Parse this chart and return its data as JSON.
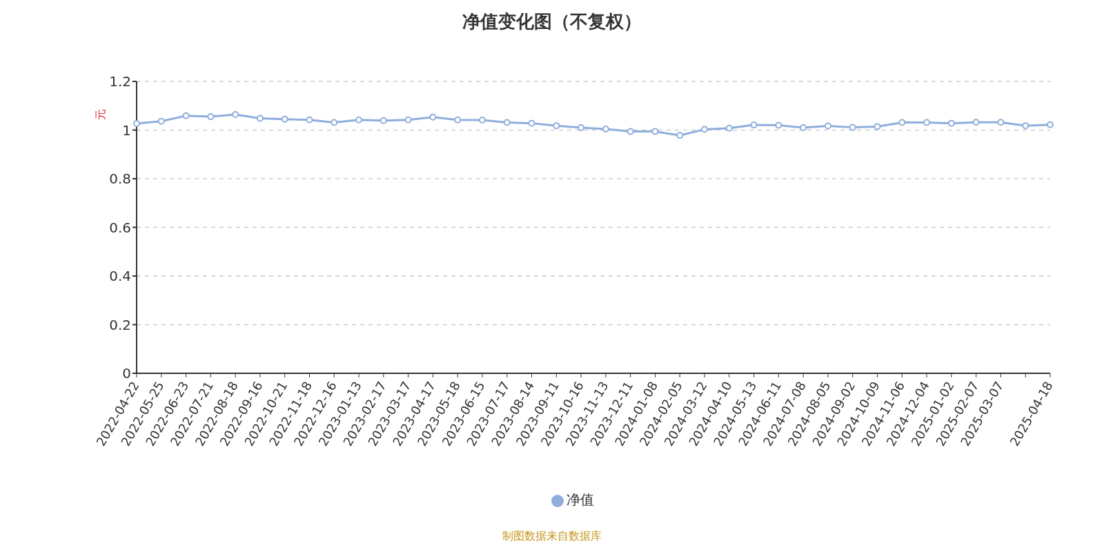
{
  "chart_data": {
    "type": "line",
    "title": "净值变化图（不复权）",
    "ylabel": "元",
    "categories": [
      "2022-04-22",
      "2022-05-25",
      "2022-06-23",
      "2022-07-21",
      "2022-08-18",
      "2022-09-16",
      "2022-10-21",
      "2022-11-18",
      "2022-12-16",
      "2023-01-13",
      "2023-02-17",
      "2023-03-17",
      "2023-04-17",
      "2023-05-18",
      "2023-06-15",
      "2023-07-17",
      "2023-08-14",
      "2023-09-11",
      "2023-10-16",
      "2023-11-13",
      "2023-12-11",
      "2024-01-08",
      "2024-02-05",
      "2024-03-12",
      "2024-04-10",
      "2024-05-13",
      "2024-06-11",
      "2024-07-08",
      "2024-08-05",
      "2024-09-02",
      "2024-10-09",
      "2024-11-06",
      "2024-12-04",
      "2025-01-02",
      "2025-02-07",
      "2025-03-07",
      null,
      "2025-04-18"
    ],
    "series": [
      {
        "name": "净值",
        "color": "#8eaedd",
        "values": [
          1.027,
          1.036,
          1.059,
          1.055,
          1.064,
          1.048,
          1.045,
          1.042,
          1.031,
          1.042,
          1.039,
          1.042,
          1.053,
          1.042,
          1.041,
          1.031,
          1.028,
          1.018,
          1.01,
          1.004,
          0.994,
          0.994,
          0.978,
          1.003,
          1.008,
          1.021,
          1.02,
          1.01,
          1.017,
          1.011,
          1.014,
          1.031,
          1.031,
          1.028,
          1.032,
          1.032,
          1.018,
          1.022
        ]
      }
    ],
    "ylim": [
      0,
      1.2
    ],
    "yticks": [
      0,
      0.2,
      0.4,
      0.6,
      0.8,
      1,
      1.2
    ],
    "grid": "y",
    "legend": "bottom",
    "marker": "circle",
    "line_style": "solid",
    "annotations": [
      "制图数据来自数据库"
    ]
  }
}
